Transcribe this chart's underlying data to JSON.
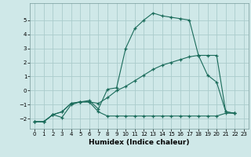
{
  "xlabel": "Humidex (Indice chaleur)",
  "bg_color": "#cfe8e8",
  "grid_color": "#aacccc",
  "line_color": "#1a6b5a",
  "xlim": [
    -0.5,
    23.5
  ],
  "ylim": [
    -2.7,
    6.2
  ],
  "yticks": [
    -2,
    -1,
    0,
    1,
    2,
    3,
    4,
    5
  ],
  "xticks": [
    0,
    1,
    2,
    3,
    4,
    5,
    6,
    7,
    8,
    9,
    10,
    11,
    12,
    13,
    14,
    15,
    16,
    17,
    18,
    19,
    20,
    21,
    22,
    23
  ],
  "lines": [
    {
      "x": [
        0,
        1,
        2,
        3,
        4,
        5,
        6,
        7,
        8,
        9,
        10,
        11,
        12,
        13,
        14,
        15,
        16,
        17,
        18,
        19,
        20,
        21,
        22
      ],
      "y": [
        -2.2,
        -2.2,
        -1.7,
        -1.5,
        -0.9,
        -0.8,
        -0.8,
        -1.5,
        -1.8,
        -1.8,
        -1.8,
        -1.8,
        -1.8,
        -1.8,
        -1.8,
        -1.8,
        -1.8,
        -1.8,
        -1.8,
        -1.8,
        -1.8,
        -1.6,
        -1.6
      ]
    },
    {
      "x": [
        0,
        1,
        2,
        3,
        4,
        5,
        6,
        7,
        8,
        9,
        10,
        11,
        12,
        13,
        14,
        15,
        16,
        17,
        18,
        19,
        20,
        21,
        22
      ],
      "y": [
        -2.2,
        -2.2,
        -1.7,
        -1.5,
        -0.9,
        -0.8,
        -0.8,
        -0.9,
        -0.5,
        0.0,
        0.3,
        0.7,
        1.1,
        1.5,
        1.8,
        2.0,
        2.2,
        2.4,
        2.5,
        2.5,
        2.5,
        -1.5,
        -1.6
      ]
    },
    {
      "x": [
        0,
        1,
        2,
        3,
        4,
        5,
        6,
        7,
        8,
        9,
        10,
        11,
        12,
        13,
        14,
        15,
        16,
        17,
        18,
        19,
        20,
        21,
        22
      ],
      "y": [
        -2.2,
        -2.2,
        -1.7,
        -1.9,
        -1.0,
        -0.8,
        -0.7,
        -1.3,
        0.1,
        0.2,
        3.0,
        4.4,
        5.0,
        5.5,
        5.3,
        5.2,
        5.1,
        5.0,
        2.5,
        1.1,
        0.6,
        -1.5,
        -1.6
      ]
    }
  ]
}
